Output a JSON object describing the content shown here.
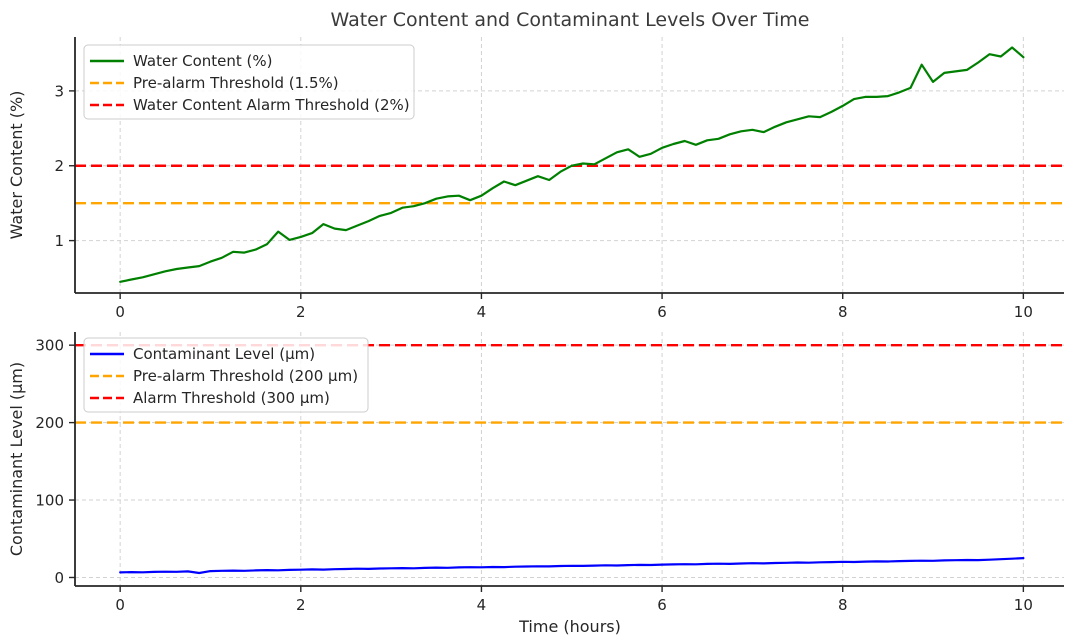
{
  "title": "Water Content and Contaminant Levels Over Time",
  "colors": {
    "water_line": "#008000",
    "contaminant_line": "#0000FF",
    "pre_alarm": "#FFA500",
    "alarm": "#FF0000",
    "grid": "#d2d2d2",
    "text": "#262626"
  },
  "chart_data": [
    {
      "type": "line",
      "ylabel": "Water Content (%)",
      "xlabel": "",
      "x_ticks": [
        0,
        2,
        4,
        6,
        8,
        10
      ],
      "y_ticks": [
        1,
        2,
        3
      ],
      "xlim": [
        -0.5,
        10.45
      ],
      "ylim": [
        0.3,
        3.72
      ],
      "x_range": [
        0,
        10
      ],
      "grid": true,
      "legend_position": "upper-left",
      "series": [
        {
          "name": "Water Content (%)",
          "color": "#008000",
          "style": "solid",
          "values": [
            0.45,
            0.48,
            0.51,
            0.55,
            0.59,
            0.62,
            0.64,
            0.66,
            0.72,
            0.77,
            0.85,
            0.84,
            0.88,
            0.95,
            1.12,
            1.01,
            1.05,
            1.1,
            1.22,
            1.16,
            1.14,
            1.2,
            1.26,
            1.33,
            1.37,
            1.44,
            1.46,
            1.5,
            1.56,
            1.59,
            1.6,
            1.54,
            1.6,
            1.7,
            1.79,
            1.74,
            1.8,
            1.86,
            1.81,
            1.92,
            2.0,
            2.03,
            2.02,
            2.1,
            2.18,
            2.22,
            2.12,
            2.16,
            2.24,
            2.29,
            2.33,
            2.28,
            2.34,
            2.36,
            2.42,
            2.46,
            2.48,
            2.45,
            2.52,
            2.58,
            2.62,
            2.66,
            2.65,
            2.72,
            2.8,
            2.89,
            2.92,
            2.92,
            2.93,
            2.98,
            3.04,
            3.35,
            3.12,
            3.24,
            3.26,
            3.28,
            3.38,
            3.49,
            3.46,
            3.58,
            3.45
          ]
        },
        {
          "name": "Pre-alarm Threshold (1.5%)",
          "color": "#FFA500",
          "style": "dashed",
          "threshold": 1.5
        },
        {
          "name": "Water Content Alarm Threshold (2%)",
          "color": "#FF0000",
          "style": "dashed",
          "threshold": 2
        }
      ]
    },
    {
      "type": "line",
      "ylabel": "Contaminant Level (µm)",
      "xlabel": "Time (hours)",
      "x_ticks": [
        0,
        2,
        4,
        6,
        8,
        10
      ],
      "y_ticks": [
        0,
        100,
        200,
        300
      ],
      "xlim": [
        -0.5,
        10.45
      ],
      "ylim": [
        -11,
        317
      ],
      "x_range": [
        0,
        10
      ],
      "grid": true,
      "legend_position": "upper-left",
      "series": [
        {
          "name": "Contaminant Level (µm)",
          "color": "#0000FF",
          "style": "solid",
          "values": [
            6.6,
            6.9,
            6.7,
            7.2,
            7.5,
            7.3,
            7.9,
            5.8,
            8.3,
            8.6,
            8.9,
            8.6,
            9.2,
            9.5,
            9.3,
            9.8,
            10.1,
            10.4,
            10.2,
            10.7,
            11.0,
            11.3,
            11.1,
            11.6,
            11.9,
            12.1,
            11.8,
            12.4,
            12.7,
            12.5,
            13.0,
            13.3,
            13.1,
            13.6,
            13.4,
            13.9,
            14.2,
            14.5,
            14.3,
            14.8,
            15.1,
            14.9,
            15.4,
            15.7,
            15.5,
            16.0,
            16.3,
            16.1,
            16.6,
            16.9,
            17.2,
            17.0,
            17.5,
            17.8,
            17.6,
            18.1,
            18.4,
            18.2,
            18.7,
            19.0,
            19.3,
            19.1,
            19.6,
            19.9,
            20.2,
            20.0,
            20.5,
            20.8,
            20.6,
            21.1,
            21.4,
            21.7,
            21.5,
            22.0,
            22.3,
            22.6,
            22.4,
            22.9,
            23.6,
            24.2,
            25.0
          ]
        },
        {
          "name": "Pre-alarm Threshold (200 µm)",
          "color": "#FFA500",
          "style": "dashed",
          "threshold": 200
        },
        {
          "name": "Alarm Threshold (300 µm)",
          "color": "#FF0000",
          "style": "dashed",
          "threshold": 300
        }
      ]
    }
  ]
}
